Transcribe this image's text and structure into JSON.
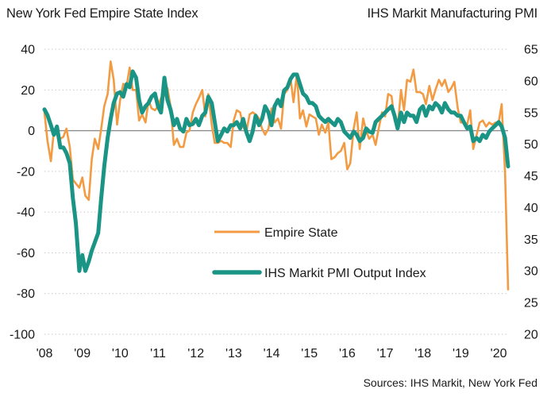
{
  "chart_data": {
    "type": "line",
    "title_left": "New York Fed Empire State Index",
    "title_right": "IHS Markit Manufacturing PMI",
    "source": "Sources: IHS Markit, New York Fed",
    "x_tick_labels": [
      "'08",
      "'09",
      "'10",
      "'11",
      "'12",
      "'13",
      "'14",
      "'15",
      "'16",
      "'17",
      "'18",
      "'19",
      "'20"
    ],
    "x_range": [
      2008.0,
      2020.25
    ],
    "y_left": {
      "ticks": [
        "40",
        "20",
        "0",
        "-20",
        "-40",
        "-60",
        "-80",
        "-100"
      ],
      "range": [
        -100,
        40
      ]
    },
    "y_right": {
      "ticks": [
        "65",
        "60",
        "55",
        "50",
        "45",
        "40",
        "35",
        "30",
        "25",
        "20"
      ],
      "range": [
        20,
        65
      ]
    },
    "zero_line_left": 0,
    "grid": "horizontal dotted",
    "legend_placement": "center",
    "series": [
      {
        "name": "Empire State",
        "axis": "left",
        "color": "#F39B43",
        "x": [
          2008.0,
          2008.08,
          2008.17,
          2008.25,
          2008.33,
          2008.42,
          2008.5,
          2008.58,
          2008.67,
          2008.75,
          2008.83,
          2008.92,
          2009.0,
          2009.08,
          2009.17,
          2009.25,
          2009.33,
          2009.42,
          2009.5,
          2009.58,
          2009.67,
          2009.75,
          2009.83,
          2009.92,
          2010.0,
          2010.08,
          2010.17,
          2010.25,
          2010.33,
          2010.42,
          2010.5,
          2010.58,
          2010.67,
          2010.75,
          2010.83,
          2010.92,
          2011.0,
          2011.08,
          2011.17,
          2011.25,
          2011.33,
          2011.42,
          2011.5,
          2011.58,
          2011.67,
          2011.75,
          2011.83,
          2011.92,
          2012.0,
          2012.08,
          2012.17,
          2012.25,
          2012.33,
          2012.42,
          2012.5,
          2012.58,
          2012.67,
          2012.75,
          2012.83,
          2012.92,
          2013.0,
          2013.08,
          2013.17,
          2013.25,
          2013.33,
          2013.42,
          2013.5,
          2013.58,
          2013.67,
          2013.75,
          2013.83,
          2013.92,
          2014.0,
          2014.08,
          2014.17,
          2014.25,
          2014.33,
          2014.42,
          2014.5,
          2014.58,
          2014.67,
          2014.75,
          2014.83,
          2014.92,
          2015.0,
          2015.08,
          2015.17,
          2015.25,
          2015.33,
          2015.42,
          2015.5,
          2015.58,
          2015.67,
          2015.75,
          2015.83,
          2015.92,
          2016.0,
          2016.08,
          2016.17,
          2016.25,
          2016.33,
          2016.42,
          2016.5,
          2016.58,
          2016.67,
          2016.75,
          2016.83,
          2016.92,
          2017.0,
          2017.08,
          2017.17,
          2017.25,
          2017.33,
          2017.42,
          2017.5,
          2017.58,
          2017.67,
          2017.75,
          2017.83,
          2017.92,
          2018.0,
          2018.08,
          2018.17,
          2018.25,
          2018.33,
          2018.42,
          2018.5,
          2018.58,
          2018.67,
          2018.75,
          2018.83,
          2018.92,
          2019.0,
          2019.08,
          2019.17,
          2019.25,
          2019.33,
          2019.42,
          2019.5,
          2019.58,
          2019.67,
          2019.75,
          2019.83,
          2019.92,
          2020.0,
          2020.08,
          2020.17,
          2020.25
        ],
        "values": [
          9,
          -5,
          -15,
          0,
          -2,
          -4,
          -3,
          1,
          -8,
          -24,
          -26,
          -28,
          -23,
          -32,
          -34,
          -14,
          -4,
          -9,
          1,
          12,
          18,
          34,
          25,
          3,
          15,
          23,
          22,
          31,
          20,
          20,
          5,
          8,
          4,
          15,
          11,
          10,
          12,
          16,
          17,
          21,
          12,
          -7,
          -4,
          -8,
          -8,
          -1,
          0,
          9,
          13,
          16,
          20,
          7,
          18,
          3,
          -6,
          -6,
          -5,
          -6,
          -6,
          -8,
          5,
          10,
          9,
          2,
          -1,
          8,
          9,
          8,
          6,
          1,
          -2,
          1,
          11,
          4,
          6,
          1,
          18,
          20,
          26,
          14,
          28,
          6,
          10,
          2,
          8,
          7,
          6,
          -2,
          3,
          -1,
          4,
          -14,
          -13,
          -11,
          -10,
          -6,
          -19,
          -16,
          1,
          9,
          -9,
          6,
          0,
          -4,
          -2,
          -7,
          1,
          9,
          7,
          18,
          17,
          5,
          1,
          20,
          10,
          25,
          24,
          30,
          19,
          19,
          18,
          13,
          22,
          15,
          20,
          25,
          22,
          25,
          19,
          21,
          24,
          11,
          4,
          4,
          3,
          10,
          -9,
          -2,
          4,
          5,
          2,
          4,
          3,
          4,
          4,
          13,
          -21,
          -78
        ]
      },
      {
        "name": "IHS Markit PMI Output Index",
        "axis": "right",
        "color": "#1A9485",
        "x": [
          2008.0,
          2008.08,
          2008.17,
          2008.25,
          2008.33,
          2008.42,
          2008.5,
          2008.58,
          2008.67,
          2008.75,
          2008.83,
          2008.92,
          2009.0,
          2009.08,
          2009.17,
          2009.25,
          2009.33,
          2009.42,
          2009.5,
          2009.58,
          2009.67,
          2009.75,
          2009.83,
          2009.92,
          2010.0,
          2010.08,
          2010.17,
          2010.25,
          2010.33,
          2010.42,
          2010.5,
          2010.58,
          2010.67,
          2010.75,
          2010.83,
          2010.92,
          2011.0,
          2011.08,
          2011.17,
          2011.25,
          2011.33,
          2011.42,
          2011.5,
          2011.58,
          2011.67,
          2011.75,
          2011.83,
          2011.92,
          2012.0,
          2012.08,
          2012.17,
          2012.25,
          2012.33,
          2012.42,
          2012.5,
          2012.58,
          2012.67,
          2012.75,
          2012.83,
          2012.92,
          2013.0,
          2013.08,
          2013.17,
          2013.25,
          2013.33,
          2013.42,
          2013.5,
          2013.58,
          2013.67,
          2013.75,
          2013.83,
          2013.92,
          2014.0,
          2014.08,
          2014.17,
          2014.25,
          2014.33,
          2014.42,
          2014.5,
          2014.58,
          2014.67,
          2014.75,
          2014.83,
          2014.92,
          2015.0,
          2015.08,
          2015.17,
          2015.25,
          2015.33,
          2015.42,
          2015.5,
          2015.58,
          2015.67,
          2015.75,
          2015.83,
          2015.92,
          2016.0,
          2016.08,
          2016.17,
          2016.25,
          2016.33,
          2016.42,
          2016.5,
          2016.58,
          2016.67,
          2016.75,
          2016.83,
          2016.92,
          2017.0,
          2017.08,
          2017.17,
          2017.25,
          2017.33,
          2017.42,
          2017.5,
          2017.58,
          2017.67,
          2017.75,
          2017.83,
          2017.92,
          2018.0,
          2018.08,
          2018.17,
          2018.25,
          2018.33,
          2018.42,
          2018.5,
          2018.58,
          2018.67,
          2018.75,
          2018.83,
          2018.92,
          2019.0,
          2019.08,
          2019.17,
          2019.25,
          2019.33,
          2019.42,
          2019.5,
          2019.58,
          2019.67,
          2019.75,
          2019.83,
          2019.92,
          2020.0,
          2020.08,
          2020.17,
          2020.25
        ],
        "values": [
          55.5,
          54.6,
          53,
          51.5,
          52.8,
          49.5,
          49.5,
          48.6,
          47,
          41.5,
          37.5,
          30,
          32.5,
          30,
          31.5,
          33.2,
          34.5,
          36,
          41.5,
          46.5,
          51,
          54,
          56.5,
          58,
          58.2,
          57.5,
          59.5,
          59,
          61.5,
          60.5,
          57,
          55,
          56,
          56.5,
          57.5,
          58,
          56,
          55,
          60.5,
          57,
          55.5,
          53,
          54,
          52.5,
          52,
          54,
          53,
          53.2,
          54,
          53,
          54.5,
          55,
          57.5,
          56.5,
          53.5,
          50.5,
          51.5,
          52.5,
          52,
          53,
          53,
          53.5,
          52.5,
          54,
          52,
          50.5,
          52,
          54.5,
          53,
          54,
          56,
          55,
          53,
          56,
          57,
          56,
          58.5,
          59,
          60.3,
          61,
          61,
          59.5,
          58,
          57.5,
          56.5,
          56.5,
          56,
          54.5,
          54,
          53.5,
          54,
          53.5,
          53,
          54,
          53.5,
          52,
          51.5,
          51,
          52,
          51.5,
          50.5,
          51,
          52.5,
          52,
          51.8,
          53.5,
          54,
          54.5,
          55,
          55.5,
          56,
          54.5,
          52.5,
          55,
          53.5,
          55,
          54.5,
          54.5,
          53.5,
          55.5,
          56,
          54.5,
          56,
          55.5,
          56.5,
          56,
          55,
          56.5,
          55.5,
          55,
          55,
          54.5,
          54.5,
          53.5,
          52.5,
          52.8,
          50.5,
          51,
          50.5,
          51.5,
          51,
          52,
          52.5,
          53,
          53.5,
          52.8,
          51,
          46.5
        ]
      }
    ]
  }
}
